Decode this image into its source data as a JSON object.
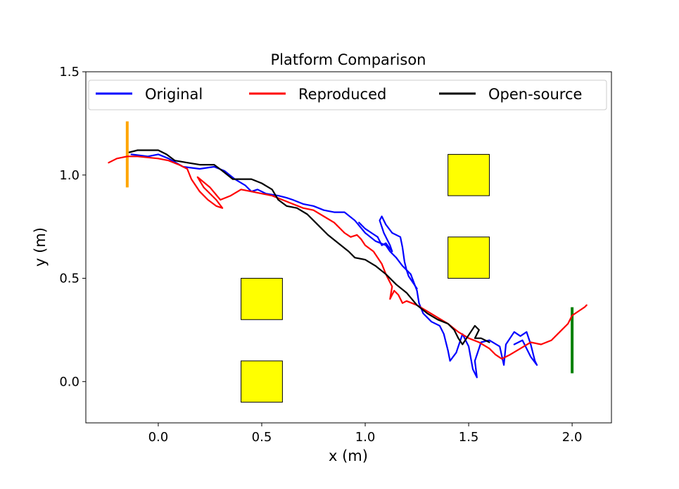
{
  "chart_data": {
    "type": "line",
    "title": "Platform Comparison",
    "xlabel": "x (m)",
    "ylabel": "y (m)",
    "xlim": [
      -0.35,
      2.19
    ],
    "ylim": [
      -0.2,
      1.5
    ],
    "xticks": [
      "0.0",
      "0.5",
      "1.0",
      "1.5",
      "2.0"
    ],
    "yticks": [
      "0.0",
      "0.5",
      "1.0",
      "1.5"
    ],
    "grid": false,
    "legend": {
      "placement": "top",
      "columns": 3
    },
    "series": [
      {
        "name": "Original",
        "color": "#0000ff",
        "points": [
          [
            -0.13,
            1.1
          ],
          [
            -0.05,
            1.09
          ],
          [
            0.0,
            1.1
          ],
          [
            0.05,
            1.08
          ],
          [
            0.12,
            1.04
          ],
          [
            0.2,
            1.03
          ],
          [
            0.27,
            1.04
          ],
          [
            0.32,
            1.02
          ],
          [
            0.37,
            0.98
          ],
          [
            0.42,
            0.95
          ],
          [
            0.45,
            0.92
          ],
          [
            0.48,
            0.93
          ],
          [
            0.52,
            0.91
          ],
          [
            0.58,
            0.9
          ],
          [
            0.62,
            0.89
          ],
          [
            0.65,
            0.88
          ],
          [
            0.7,
            0.86
          ],
          [
            0.75,
            0.85
          ],
          [
            0.8,
            0.83
          ],
          [
            0.85,
            0.82
          ],
          [
            0.9,
            0.82
          ],
          [
            0.95,
            0.78
          ],
          [
            1.0,
            0.72
          ],
          [
            1.05,
            0.68
          ],
          [
            1.1,
            0.66
          ],
          [
            1.12,
            0.63
          ],
          [
            1.15,
            0.6
          ],
          [
            1.18,
            0.56
          ],
          [
            1.22,
            0.52
          ],
          [
            1.25,
            0.44
          ],
          [
            1.26,
            0.38
          ],
          [
            1.28,
            0.33
          ],
          [
            1.32,
            0.29
          ],
          [
            1.36,
            0.27
          ],
          [
            1.38,
            0.23
          ],
          [
            1.4,
            0.15
          ],
          [
            1.41,
            0.1
          ],
          [
            1.44,
            0.14
          ],
          [
            1.47,
            0.23
          ],
          [
            1.5,
            0.17
          ],
          [
            1.52,
            0.06
          ],
          [
            1.54,
            0.02
          ],
          [
            1.53,
            0.1
          ],
          [
            1.56,
            0.19
          ],
          [
            1.6,
            0.2
          ],
          [
            1.65,
            0.17
          ],
          [
            1.67,
            0.08
          ],
          [
            1.68,
            0.18
          ],
          [
            1.72,
            0.24
          ],
          [
            1.75,
            0.22
          ],
          [
            1.78,
            0.24
          ],
          [
            1.8,
            0.18
          ],
          [
            1.82,
            0.1
          ],
          [
            1.83,
            0.08
          ],
          [
            1.8,
            0.12
          ],
          [
            1.76,
            0.2
          ],
          [
            1.72,
            0.18
          ]
        ]
      },
      {
        "name": "Original",
        "color": "#0000ff",
        "points": [
          [
            0.97,
            0.77
          ],
          [
            1.0,
            0.74
          ],
          [
            1.03,
            0.72
          ],
          [
            1.06,
            0.7
          ],
          [
            1.08,
            0.66
          ],
          [
            1.1,
            0.67
          ],
          [
            1.13,
            0.63
          ],
          [
            1.12,
            0.66
          ],
          [
            1.09,
            0.72
          ],
          [
            1.07,
            0.78
          ],
          [
            1.08,
            0.8
          ],
          [
            1.1,
            0.76
          ],
          [
            1.13,
            0.72
          ],
          [
            1.17,
            0.7
          ],
          [
            1.18,
            0.65
          ],
          [
            1.19,
            0.58
          ],
          [
            1.2,
            0.54
          ],
          [
            1.21,
            0.51
          ],
          [
            1.23,
            0.48
          ],
          [
            1.25,
            0.45
          ]
        ]
      },
      {
        "name": "Reproduced",
        "color": "#ff0000",
        "points": [
          [
            -0.24,
            1.06
          ],
          [
            -0.2,
            1.08
          ],
          [
            -0.15,
            1.09
          ],
          [
            -0.1,
            1.09
          ],
          [
            0.0,
            1.08
          ],
          [
            0.05,
            1.07
          ],
          [
            0.1,
            1.05
          ],
          [
            0.14,
            1.03
          ],
          [
            0.16,
            0.98
          ],
          [
            0.2,
            0.92
          ],
          [
            0.24,
            0.88
          ],
          [
            0.28,
            0.85
          ],
          [
            0.31,
            0.84
          ],
          [
            0.28,
            0.88
          ],
          [
            0.22,
            0.94
          ],
          [
            0.19,
            0.99
          ],
          [
            0.25,
            0.94
          ],
          [
            0.3,
            0.88
          ],
          [
            0.35,
            0.9
          ],
          [
            0.4,
            0.93
          ],
          [
            0.45,
            0.92
          ],
          [
            0.5,
            0.91
          ],
          [
            0.55,
            0.9
          ],
          [
            0.6,
            0.88
          ],
          [
            0.65,
            0.86
          ],
          [
            0.7,
            0.84
          ],
          [
            0.75,
            0.83
          ],
          [
            0.8,
            0.8
          ],
          [
            0.85,
            0.77
          ],
          [
            0.9,
            0.72
          ],
          [
            0.93,
            0.7
          ],
          [
            0.96,
            0.71
          ],
          [
            0.98,
            0.69
          ],
          [
            1.0,
            0.66
          ],
          [
            1.04,
            0.63
          ],
          [
            1.08,
            0.57
          ],
          [
            1.1,
            0.52
          ],
          [
            1.13,
            0.46
          ],
          [
            1.12,
            0.4
          ],
          [
            1.14,
            0.44
          ],
          [
            1.16,
            0.42
          ],
          [
            1.18,
            0.38
          ],
          [
            1.2,
            0.39
          ],
          [
            1.25,
            0.37
          ],
          [
            1.3,
            0.34
          ],
          [
            1.35,
            0.31
          ],
          [
            1.4,
            0.28
          ],
          [
            1.45,
            0.24
          ],
          [
            1.5,
            0.21
          ],
          [
            1.55,
            0.19
          ],
          [
            1.6,
            0.16
          ],
          [
            1.63,
            0.13
          ],
          [
            1.66,
            0.11
          ],
          [
            1.7,
            0.13
          ],
          [
            1.75,
            0.16
          ],
          [
            1.8,
            0.19
          ],
          [
            1.85,
            0.18
          ],
          [
            1.9,
            0.2
          ],
          [
            1.94,
            0.24
          ],
          [
            1.98,
            0.28
          ],
          [
            2.0,
            0.32
          ],
          [
            2.03,
            0.34
          ],
          [
            2.06,
            0.36
          ],
          [
            2.07,
            0.37
          ]
        ]
      },
      {
        "name": "Open-source",
        "color": "#000000",
        "points": [
          [
            -0.14,
            1.11
          ],
          [
            -0.1,
            1.12
          ],
          [
            -0.05,
            1.12
          ],
          [
            0.0,
            1.12
          ],
          [
            0.04,
            1.1
          ],
          [
            0.08,
            1.07
          ],
          [
            0.14,
            1.06
          ],
          [
            0.2,
            1.05
          ],
          [
            0.27,
            1.05
          ],
          [
            0.31,
            1.02
          ],
          [
            0.36,
            0.98
          ],
          [
            0.4,
            0.98
          ],
          [
            0.45,
            0.98
          ],
          [
            0.5,
            0.96
          ],
          [
            0.55,
            0.93
          ],
          [
            0.58,
            0.88
          ],
          [
            0.62,
            0.85
          ],
          [
            0.67,
            0.84
          ],
          [
            0.72,
            0.81
          ],
          [
            0.77,
            0.76
          ],
          [
            0.82,
            0.71
          ],
          [
            0.87,
            0.67
          ],
          [
            0.92,
            0.63
          ],
          [
            0.95,
            0.6
          ],
          [
            1.0,
            0.59
          ],
          [
            1.05,
            0.56
          ],
          [
            1.1,
            0.52
          ],
          [
            1.15,
            0.47
          ],
          [
            1.2,
            0.43
          ],
          [
            1.25,
            0.37
          ],
          [
            1.3,
            0.33
          ],
          [
            1.35,
            0.3
          ],
          [
            1.4,
            0.28
          ],
          [
            1.43,
            0.25
          ],
          [
            1.45,
            0.21
          ],
          [
            1.47,
            0.18
          ],
          [
            1.49,
            0.21
          ],
          [
            1.51,
            0.24
          ],
          [
            1.53,
            0.27
          ],
          [
            1.55,
            0.25
          ],
          [
            1.53,
            0.21
          ],
          [
            1.56,
            0.21
          ],
          [
            1.6,
            0.19
          ]
        ]
      }
    ],
    "obstacles": [
      {
        "x": [
          1.4,
          1.6
        ],
        "y": [
          0.9,
          1.1
        ]
      },
      {
        "x": [
          1.4,
          1.6
        ],
        "y": [
          0.5,
          0.7
        ]
      },
      {
        "x": [
          0.4,
          0.6
        ],
        "y": [
          0.3,
          0.5
        ]
      },
      {
        "x": [
          0.4,
          0.6
        ],
        "y": [
          -0.1,
          0.1
        ]
      }
    ],
    "start_marker": {
      "x": -0.15,
      "y": [
        0.94,
        1.26
      ],
      "color": "#ffa500"
    },
    "goal_marker": {
      "x": 2.0,
      "y": [
        0.04,
        0.36
      ],
      "color": "#008000"
    },
    "obstacle_color": "#ffff00"
  }
}
